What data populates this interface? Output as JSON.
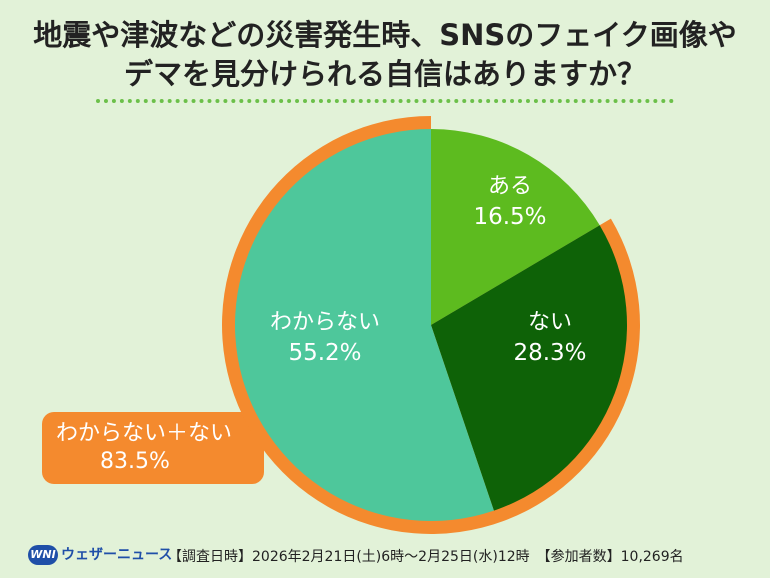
{
  "title_lines": [
    "地震や津波などの災害発生時、SNSのフェイク画像や",
    "デマを見分けられる自信はありますか？"
  ],
  "combined_label": {
    "name": "わからない＋ない",
    "value": "83.5%",
    "color": "#f48a2e"
  },
  "footer": {
    "logo_mark": "WNI",
    "logo_text": "ウェザーニュース",
    "survey_info": "【調査日時】2026年2月21日(土)6時〜2月25日(水)12時　【参加者数】10,269名"
  },
  "colors": {
    "background": "#e2f2d8",
    "dotted_rule": "#6cc04a",
    "ring": "#f48a2e"
  },
  "chart_data": {
    "type": "pie",
    "categories": [
      "ある",
      "ない",
      "わからない"
    ],
    "values": [
      16.5,
      28.3,
      55.2
    ],
    "value_labels": [
      "16.5%",
      "28.3%",
      "55.2%"
    ],
    "colors": [
      "#5dbb1f",
      "#0e6207",
      "#4ec79b"
    ],
    "start": "12 o'clock",
    "direction": "clockwise",
    "highlight": {
      "categories": [
        "ない",
        "わからない"
      ],
      "total": 83.5
    }
  }
}
